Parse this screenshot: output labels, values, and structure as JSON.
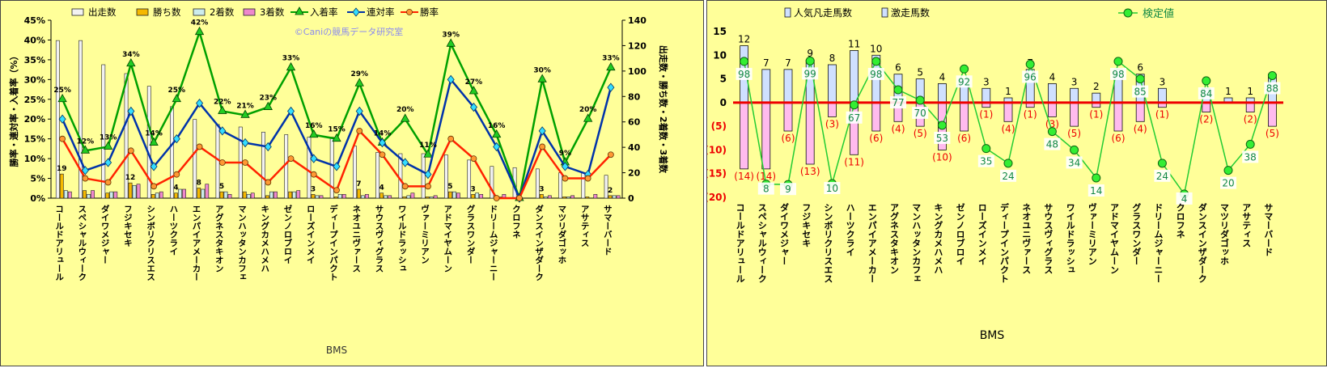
{
  "chart_data": [
    {
      "type": "bar+line",
      "categories": [
        "コールドアリュール",
        "スペシャルウィーク",
        "ダイワメジャー",
        "フジキセキ",
        "シンボリクリスエス",
        "ハーツクライ",
        "エンパイアメーカー",
        "アグネスタキオン",
        "マンハッタンカフェ",
        "キングカメハメハ",
        "ゼンノロブロイ",
        "ローズインメイ",
        "ディープインパクト",
        "ネオユニヴァース",
        "サウスヴィグラス",
        "ワイルドラッシュ",
        "ヴァーミリアン",
        "アドマイヤムーン",
        "グラスワンダー",
        "ドリームジャーニー",
        "クロフネ",
        "ダンスインザダーク",
        "マツリダゴッホ",
        "アサティス",
        "サマーバード"
      ],
      "legend": [
        "出走数",
        "勝ち数",
        "2着数",
        "3着数",
        "入着率",
        "連対率",
        "勝率"
      ],
      "watermark": "©Caniの競馬データ研究室",
      "ylabel_left": "勝率・連対率・入着率（%）",
      "ylabel_right": "出走数・勝ち数・2着数・3着数",
      "xlabel": "BMS",
      "y_left_ticks": [
        "0%",
        "5%",
        "10%",
        "15%",
        "20%",
        "25%",
        "30%",
        "35%",
        "40%",
        "45%"
      ],
      "y_right_ticks": [
        "0",
        "20",
        "40",
        "60",
        "80",
        "100",
        "120",
        "140"
      ],
      "ylim_left": [
        0,
        45
      ],
      "ylim_right": [
        0,
        140
      ],
      "legend_position": "top",
      "series_bars": [
        {
          "name": "出走数",
          "values": [
            124,
            124,
            105,
            98,
            88,
            72,
            62,
            58,
            56,
            52,
            50,
            48,
            48,
            41,
            36,
            35,
            35,
            34,
            30,
            25,
            24,
            23,
            20,
            20,
            18
          ]
        },
        {
          "name": "勝ち数",
          "values": [
            19,
            6,
            4,
            12,
            3,
            4,
            8,
            5,
            5,
            2,
            5,
            3,
            1,
            7,
            4,
            1,
            1,
            5,
            3,
            0,
            0,
            3,
            1,
            1,
            2
          ]
        },
        {
          "name": "2着数",
          "values": [
            6,
            3,
            5,
            10,
            4,
            7,
            7,
            5,
            3,
            5,
            5,
            2,
            3,
            2,
            2,
            2,
            1,
            5,
            4,
            1,
            0,
            1,
            1,
            0,
            2
          ]
        },
        {
          "name": "3着数",
          "values": [
            5,
            6,
            5,
            11,
            5,
            7,
            11,
            3,
            4,
            5,
            6,
            2,
            3,
            3,
            2,
            4,
            2,
            4,
            3,
            3,
            0,
            2,
            2,
            3,
            2
          ]
        }
      ],
      "series_lines": [
        {
          "name": "入着率",
          "values": [
            25,
            12,
            13,
            34,
            14,
            25,
            42,
            22,
            21,
            23,
            33,
            16,
            15,
            29,
            14,
            20,
            11,
            39,
            27,
            16,
            0,
            30,
            9,
            20,
            33
          ]
        },
        {
          "name": "連対率",
          "values": [
            20,
            7,
            9,
            22,
            8,
            15,
            24,
            17,
            14,
            13,
            22,
            10,
            8,
            22,
            14,
            9,
            6,
            30,
            23,
            13,
            0,
            17,
            8,
            6,
            28
          ]
        },
        {
          "name": "勝率",
          "values": [
            15,
            5,
            4,
            12,
            3,
            6,
            13,
            9,
            9,
            4,
            10,
            6,
            2,
            17,
            11,
            3,
            3,
            15,
            10,
            0,
            0,
            13,
            5,
            5,
            11
          ]
        }
      ],
      "label_win_pct": [
        "25%",
        "12%",
        "13%",
        "34%",
        "14%",
        "25%",
        "42%",
        "22%",
        "21%",
        "23%",
        "33%",
        "16%",
        "15%",
        "29%",
        "14%",
        "20%",
        "11%",
        "39%",
        "27%",
        "16%",
        "",
        "30%",
        "9%",
        "20%",
        "33%"
      ],
      "label_wins": [
        "19",
        "",
        "",
        "12",
        "",
        "4",
        "8",
        "5",
        "",
        "",
        "",
        "3",
        "",
        "7",
        "4",
        "",
        "",
        "5",
        "3",
        "",
        "",
        "3",
        "",
        "",
        "2"
      ],
      "colors": {
        "starts": "#f2f2f2",
        "wins": "#f5b800",
        "second": "#ccecec",
        "third": "#ee88cc",
        "place_rate": "#00a000",
        "quinella_rate": "#0033aa",
        "win_rate": "#ff2200"
      }
    },
    {
      "type": "bar+line",
      "categories": [
        "コールドアリュール",
        "スペシャルウィーク",
        "ダイワメジャー",
        "フジキセキ",
        "シンボリクリスエス",
        "ハーツクライ",
        "エンパイアメーカー",
        "アグネスタキオン",
        "マンハッタンカフェ",
        "キングカメハメハ",
        "ゼンノロブロイ",
        "ローズインメイ",
        "ディープインパクト",
        "ネオユニヴァース",
        "サウスヴィグラス",
        "ワイルドラッシュ",
        "ヴァーミリアン",
        "アドマイヤムーン",
        "グラスワンダー",
        "ドリームジャーニー",
        "クロフネ",
        "ダンスインザダーク",
        "マツリダゴッホ",
        "アサティス",
        "サマーバード"
      ],
      "legend": [
        "人気凡走馬数",
        "激走馬数",
        "検定値"
      ],
      "xlabel": "BMS",
      "y_ticks": [
        "15",
        "10",
        "5",
        "0",
        "(5)",
        "(10)",
        "(15)",
        "(20)"
      ],
      "ylim": [
        -20,
        15
      ],
      "legend_position": "top",
      "series_bars": [
        {
          "name": "激走馬数",
          "values": [
            12,
            7,
            7,
            9,
            8,
            11,
            10,
            6,
            5,
            4,
            5,
            3,
            1,
            7,
            4,
            3,
            2,
            7,
            6,
            3,
            0,
            3,
            1,
            1,
            6
          ]
        },
        {
          "name": "人気凡走馬数",
          "values": [
            -14,
            -14,
            -6,
            -13,
            -3,
            -11,
            -6,
            -4,
            -5,
            -10,
            -6,
            -1,
            -4,
            -1,
            -3,
            -5,
            -1,
            -6,
            -4,
            -1,
            0,
            -2,
            0,
            -2,
            -5
          ]
        }
      ],
      "label_positive": [
        "12",
        "7",
        "7",
        "9",
        "8",
        "11",
        "10",
        "6",
        "5",
        "4",
        "",
        "3",
        "1",
        "7",
        "4",
        "3",
        "2",
        "",
        "6",
        "3",
        "",
        "3",
        "1",
        "1",
        ""
      ],
      "label_negative": [
        "(14)",
        "(14)",
        "(6)",
        "(13)",
        "(3)",
        "(11)",
        "(6)",
        "(4)",
        "(5)",
        "(10)",
        "(6)",
        "(1)",
        "(4)",
        "(1)",
        "(3)",
        "(5)",
        "(1)",
        "(6)",
        "(4)",
        "(1)",
        "",
        "(2)",
        "",
        "(2)",
        "(5)"
      ],
      "series_lines": [
        {
          "name": "検定値",
          "values": [
            98,
            8,
            9,
            99,
            10,
            67,
            98,
            77,
            70,
            53,
            92,
            35,
            24,
            96,
            48,
            34,
            14,
            98,
            85,
            24,
            4,
            84,
            20,
            38,
            88
          ]
        }
      ],
      "line_plot_values": [
        8.7,
        -17.2,
        -17.3,
        8.8,
        -17.1,
        -0.5,
        8.7,
        2.7,
        0.5,
        -4.8,
        7.1,
        -9.7,
        -12.8,
        8.1,
        -6.1,
        -10.0,
        -15.9,
        8.7,
        5.0,
        -12.8,
        -19.3,
        4.6,
        -14.3,
        -8.8,
        5.7
      ],
      "colors": {
        "positive_bar": "#cfe0ff",
        "negative_bar": "#ffbbee",
        "zero_line": "#ee0000",
        "line": "#22cc33"
      }
    }
  ]
}
